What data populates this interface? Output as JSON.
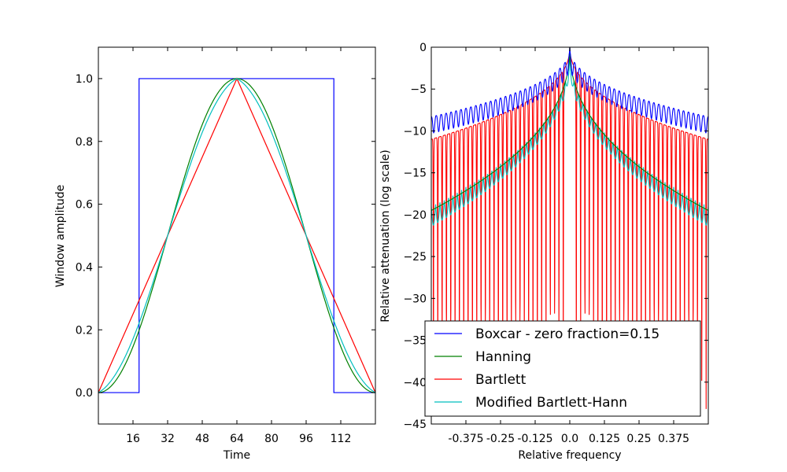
{
  "chart_data": [
    {
      "type": "line",
      "xlabel": "Time",
      "ylabel": "Window amplitude",
      "xlim": [
        0,
        128
      ],
      "ylim": [
        -0.1,
        1.1
      ],
      "xticks": [
        16,
        32,
        48,
        64,
        80,
        96,
        112
      ],
      "xtick_labels": [
        "16",
        "32",
        "48",
        "64",
        "80",
        "96",
        "112"
      ],
      "yticks": [
        0.0,
        0.2,
        0.4,
        0.6,
        0.8,
        1.0
      ],
      "ytick_labels": [
        "0.0",
        "0.2",
        "0.4",
        "0.6",
        "0.8",
        "1.0"
      ],
      "grid": false,
      "series": [
        {
          "name": "Boxcar - zero fraction=0.15",
          "color": "#0000ff",
          "x": [
            0,
            18.8,
            18.8,
            108.8,
            108.8,
            128
          ],
          "values": [
            0,
            0,
            1,
            1,
            0,
            0
          ]
        },
        {
          "name": "Hanning",
          "color": "#008000",
          "shape": "hanning",
          "x_start": 0,
          "x_end": 128
        },
        {
          "name": "Bartlett",
          "color": "#ff0000",
          "x": [
            0,
            64,
            128
          ],
          "values": [
            0,
            1,
            0
          ]
        },
        {
          "name": "Modified Bartlett-Hann",
          "color": "#00bfbf",
          "shape": "modified-bartlett-hann",
          "x_start": 0,
          "x_end": 128
        }
      ]
    },
    {
      "type": "line",
      "xlabel": "Relative frequency",
      "ylabel": "Relative attenuation (log scale)",
      "xlim": [
        -0.5,
        0.5
      ],
      "ylim": [
        -45,
        0
      ],
      "xticks": [
        -0.375,
        -0.25,
        -0.125,
        0.0,
        0.125,
        0.25,
        0.375
      ],
      "xtick_labels": [
        "-0.375",
        "-0.25",
        "-0.125",
        "0.0",
        "0.125",
        "0.25",
        "0.375"
      ],
      "yticks": [
        0,
        -5,
        -10,
        -15,
        -20,
        -25,
        -30,
        -35,
        -40,
        -45
      ],
      "ytick_labels": [
        "0",
        "−5",
        "−10",
        "−15",
        "−20",
        "−25",
        "−30",
        "−35",
        "−40",
        "−45"
      ],
      "grid": false,
      "legend": {
        "position": "lower-center",
        "entries": [
          "Boxcar - zero fraction=0.15",
          "Hanning",
          "Bartlett",
          "Modified Bartlett-Hann"
        ]
      },
      "series": [
        {
          "name": "Boxcar - zero fraction=0.15",
          "color": "#0000ff",
          "peak": 0,
          "edge_envelope": -8.3,
          "ripple_depth": 2.0
        },
        {
          "name": "Hanning",
          "color": "#008000",
          "peak": 0,
          "edge_envelope": -19.5
        },
        {
          "name": "Bartlett",
          "color": "#ff0000",
          "peak": 0,
          "edge_envelope": -11.0,
          "null_floor": -45
        },
        {
          "name": "Modified Bartlett-Hann",
          "color": "#00bfbf",
          "peak": 0,
          "edge_envelope": -19.0,
          "ripple_depth": 5.0
        }
      ]
    }
  ]
}
